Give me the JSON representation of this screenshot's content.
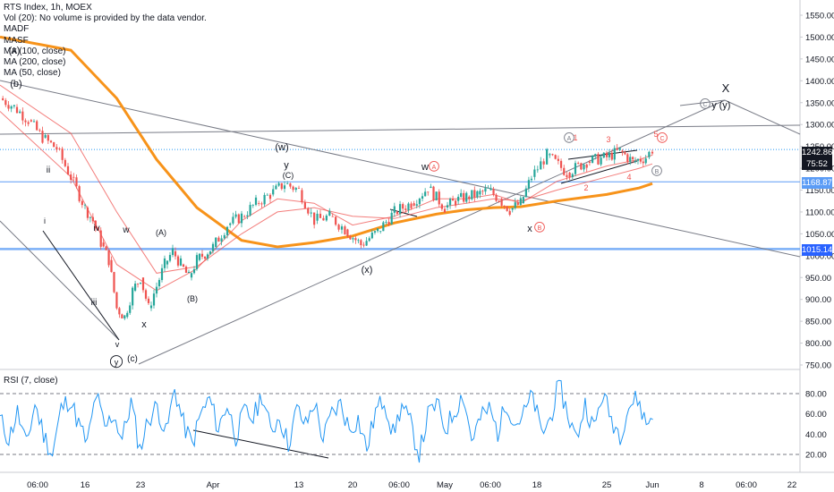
{
  "legend": {
    "title": "RTS Index, 1h, MOEX",
    "lines": [
      "Vol (20): No volume is provided by the data vendor.",
      "MADF",
      "MASF",
      "MA (100, close)",
      "MA (200, close)",
      "MA (50, close)"
    ],
    "rsi_title": "RSI (7, close)"
  },
  "price_tags": {
    "last": "1242.86",
    "countdown": "75:52",
    "level_upper": "1168.87",
    "level_lower": "1015.14"
  },
  "colors": {
    "up": "#26a69a",
    "down": "#ef5350",
    "ma_thick": "#f7931a",
    "ma_thin": "#ef5350",
    "rsi": "#2196f3",
    "hline": "#5b9cf6",
    "trend": "#787b86",
    "wave_red": "#ef5350"
  },
  "chart_data": [
    {
      "type": "line",
      "title": "RTS Index, 1h, MOEX",
      "ylim": [
        730,
        1590
      ],
      "y_ticks": [
        750,
        800,
        850,
        900,
        950,
        1000,
        1050,
        1100,
        1150,
        1200,
        1250,
        1300,
        1350,
        1400,
        1450,
        1500,
        1550
      ],
      "x_tick_labels": [
        "06:00",
        "16",
        "23",
        "Apr",
        "13",
        "20",
        "06:00",
        "May",
        "06:00",
        "18",
        "25",
        "Jun",
        "8",
        "06:00",
        "22"
      ],
      "series": [
        {
          "name": "RTS Index",
          "points": [
            [
              "Mar 10",
              1360
            ],
            [
              "Mar 11",
              1340
            ],
            [
              "Mar 12",
              1310
            ],
            [
              "Mar 13",
              1270
            ],
            [
              "Mar 14",
              1245
            ],
            [
              "Mar 15",
              1180
            ],
            [
              "Mar 16",
              1110
            ],
            [
              "Mar 17",
              1080
            ],
            [
              "Mar 18",
              1030
            ],
            [
              "Mar 19",
              990
            ],
            [
              "Mar 20",
              880
            ],
            [
              "Mar 21",
              860
            ],
            [
              "Mar 22",
              920
            ],
            [
              "Mar 23",
              950
            ],
            [
              "Mar 24",
              880
            ],
            [
              "Mar 25",
              930
            ],
            [
              "Mar 26",
              980
            ],
            [
              "Mar 27",
              1010
            ],
            [
              "Mar 28",
              980
            ],
            [
              "Mar 29",
              950
            ],
            [
              "Mar 30",
              990
            ],
            [
              "Apr 1",
              1020
            ],
            [
              "Apr 3",
              1070
            ],
            [
              "Apr 5",
              1090
            ],
            [
              "Apr 7",
              1120
            ],
            [
              "Apr 9",
              1140
            ],
            [
              "Apr 11",
              1165
            ],
            [
              "Apr 13",
              1150
            ],
            [
              "Apr 15",
              1080
            ],
            [
              "Apr 17",
              1090
            ],
            [
              "Apr 19",
              1060
            ],
            [
              "Apr 21",
              1025
            ],
            [
              "Apr 23",
              1055
            ],
            [
              "Apr 25",
              1100
            ],
            [
              "Apr 27",
              1120
            ],
            [
              "Apr 29",
              1155
            ],
            [
              "May 1",
              1110
            ],
            [
              "May 3",
              1125
            ],
            [
              "May 5",
              1135
            ],
            [
              "May 7",
              1140
            ],
            [
              "May 9",
              1150
            ],
            [
              "May 11",
              1130
            ],
            [
              "May 13",
              1105
            ],
            [
              "May 15",
              1120
            ],
            [
              "May 17",
              1180
            ],
            [
              "May 19",
              1230
            ],
            [
              "May 21",
              1190
            ],
            [
              "May 23",
              1215
            ],
            [
              "May 25",
              1225
            ],
            [
              "May 27",
              1240
            ],
            [
              "May 29",
              1215
            ],
            [
              "May 31",
              1225
            ],
            [
              "Jun 1",
              1243
            ]
          ]
        },
        {
          "name": "MA (200, close)",
          "points": [
            [
              "Mar 10",
              1500
            ],
            [
              "Mar 15",
              1470
            ],
            [
              "Mar 20",
              1360
            ],
            [
              "Mar 25",
              1220
            ],
            [
              "Mar 30",
              1110
            ],
            [
              "Apr 5",
              1035
            ],
            [
              "Apr 10",
              1020
            ],
            [
              "Apr 15",
              1030
            ],
            [
              "Apr 20",
              1045
            ],
            [
              "Apr 25",
              1075
            ],
            [
              "Apr 30",
              1095
            ],
            [
              "May 5",
              1105
            ],
            [
              "May 10",
              1110
            ],
            [
              "May 15",
              1112
            ],
            [
              "May 20",
              1125
            ],
            [
              "May 25",
              1140
            ],
            [
              "May 30",
              1155
            ],
            [
              "Jun 1",
              1165
            ]
          ]
        },
        {
          "name": "MA (100, close)",
          "points": [
            [
              "Mar 10",
              1390
            ],
            [
              "Mar 15",
              1280
            ],
            [
              "Mar 20",
              1100
            ],
            [
              "Mar 25",
              960
            ],
            [
              "Mar 30",
              975
            ],
            [
              "Apr 5",
              1050
            ],
            [
              "Apr 10",
              1100
            ],
            [
              "Apr 15",
              1110
            ],
            [
              "Apr 20",
              1090
            ],
            [
              "Apr 25",
              1085
            ],
            [
              "Apr 30",
              1110
            ],
            [
              "May 5",
              1120
            ],
            [
              "May 10",
              1130
            ],
            [
              "May 15",
              1125
            ],
            [
              "May 20",
              1150
            ],
            [
              "May 25",
              1180
            ],
            [
              "May 30",
              1200
            ],
            [
              "Jun 1",
              1210
            ]
          ]
        },
        {
          "name": "MA (50, close)",
          "points": [
            [
              "Mar 10",
              1330
            ],
            [
              "Mar 15",
              1180
            ],
            [
              "Mar 20",
              980
            ],
            [
              "Mar 25",
              920
            ],
            [
              "Mar 30",
              970
            ],
            [
              "Apr 5",
              1080
            ],
            [
              "Apr 10",
              1130
            ],
            [
              "Apr 15",
              1120
            ],
            [
              "Apr 20",
              1070
            ],
            [
              "Apr 25",
              1090
            ],
            [
              "Apr 30",
              1130
            ],
            [
              "May 5",
              1130
            ],
            [
              "May 10",
              1140
            ],
            [
              "May 15",
              1120
            ],
            [
              "May 20",
              1170
            ],
            [
              "May 25",
              1205
            ],
            [
              "May 30",
              1220
            ],
            [
              "Jun 1",
              1230
            ]
          ]
        }
      ],
      "horizontal_levels": [
        1242.86,
        1168.87,
        1015.14
      ],
      "wave_labels": [
        "(x)",
        "(b)",
        "ii",
        "i",
        "iv",
        "iii",
        "v",
        "y",
        "(c)",
        "w",
        "(A)",
        "(B)",
        "x",
        "(w)",
        "y",
        "(C)",
        "(x)",
        "w",
        "A",
        "x",
        "B",
        "A",
        "1",
        "3",
        "5",
        "C",
        "2",
        "4",
        "B",
        "C",
        "y",
        "(y)",
        "X"
      ]
    },
    {
      "type": "line",
      "title": "RSI (7, close)",
      "ylim": [
        10,
        90
      ],
      "y_ticks": [
        20,
        40,
        60,
        80
      ],
      "overbought": 80,
      "oversold": 20,
      "series": [
        {
          "name": "RSI (7, close)",
          "values": [
            55,
            35,
            62,
            28,
            70,
            40,
            20,
            65,
            75,
            50,
            30,
            80,
            45,
            60,
            35,
            72,
            25,
            55,
            68,
            40,
            85,
            50,
            30,
            60,
            75,
            45,
            70,
            38,
            62,
            55,
            80,
            42,
            58,
            30,
            65,
            48,
            72,
            35,
            60,
            70,
            45,
            55,
            25,
            62,
            75,
            40,
            68,
            50,
            20,
            58,
            70,
            45,
            62,
            80,
            35,
            55,
            65,
            42,
            72,
            50,
            60,
            78,
            40,
            55,
            90,
            60,
            35,
            70,
            45,
            80,
            55,
            40,
            68,
            75,
            50,
            62
          ]
        }
      ]
    }
  ]
}
